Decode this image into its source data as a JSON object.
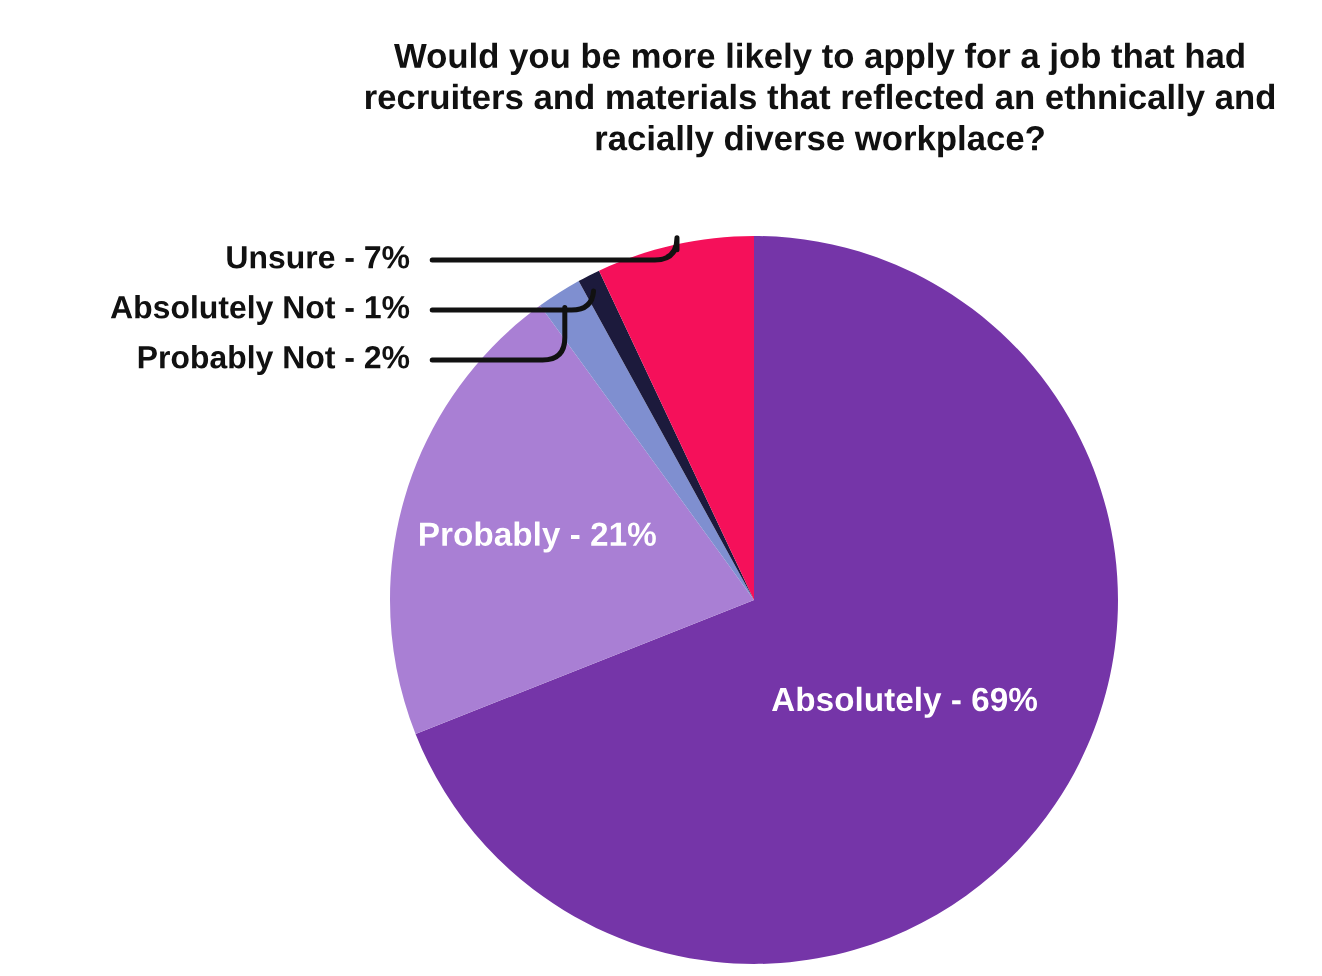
{
  "chart_data": {
    "type": "pie",
    "title": "Would you be more likely to apply for a job that had\nrecruiters and materials that reflected an ethnically and\nracially diverse workplace?",
    "categories": [
      "Absolutely - 69%",
      "Probably - 21%",
      "Probably Not - 2%",
      "Absolutely Not - 1%",
      "Unsure - 7%"
    ],
    "values": [
      69,
      21,
      2,
      1,
      7
    ],
    "colors": [
      "#7535a8",
      "#a97fd4",
      "#7f8fd0",
      "#1c1a3c",
      "#f5105a"
    ],
    "legend": false
  }
}
